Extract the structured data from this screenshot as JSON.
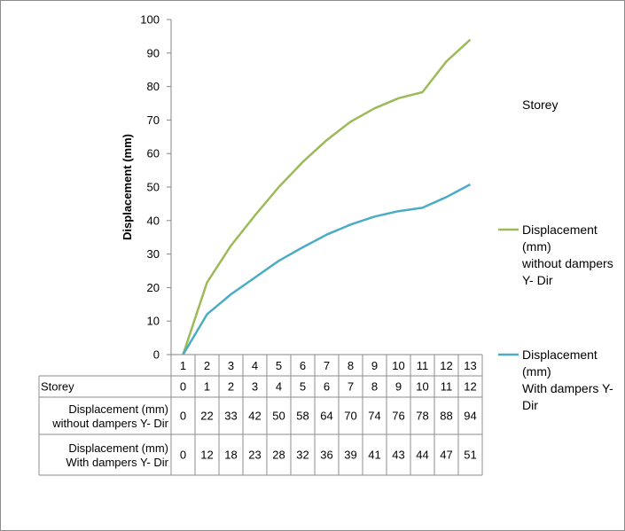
{
  "chart_data": {
    "type": "line",
    "title": "",
    "xlabel": "",
    "ylabel": "Displacement (mm)",
    "ylim": [
      0,
      100
    ],
    "y_ticks": [
      0,
      10,
      20,
      30,
      40,
      50,
      60,
      70,
      80,
      90,
      100
    ],
    "categories": [
      "1",
      "2",
      "3",
      "4",
      "5",
      "6",
      "7",
      "8",
      "9",
      "10",
      "11",
      "12",
      "13"
    ],
    "series": [
      {
        "name": "Storey",
        "label_lines": [
          "Storey"
        ],
        "row_label_lines": [
          "Storey"
        ],
        "color": "",
        "values": [
          0,
          1,
          2,
          3,
          4,
          5,
          6,
          7,
          8,
          9,
          10,
          11,
          12
        ],
        "table_values": [
          "0",
          "1",
          "2",
          "3",
          "4",
          "5",
          "6",
          "7",
          "8",
          "9",
          "10",
          "11",
          "12"
        ],
        "plotted": false
      },
      {
        "name": "Displacement (mm) without dampers Y- Dir",
        "label_lines": [
          "Displacement",
          "(mm)",
          "without dampers",
          "Y- Dir"
        ],
        "row_label_lines": [
          "Displacement (mm)",
          "without dampers Y- Dir"
        ],
        "color": "#9bbb59",
        "values": [
          0,
          21.5,
          32.5,
          41.5,
          50,
          57.5,
          64,
          69.5,
          73.5,
          76.5,
          78.3,
          87.5,
          94
        ],
        "table_values": [
          "0",
          "22",
          "33",
          "42",
          "50",
          "58",
          "64",
          "70",
          "74",
          "76",
          "78",
          "88",
          "94"
        ],
        "plotted": true
      },
      {
        "name": "Displacement (mm) With dampers Y- Dir",
        "label_lines": [
          "Displacement",
          "(mm)",
          "With dampers Y-",
          "Dir"
        ],
        "row_label_lines": [
          "Displacement (mm)",
          "With dampers Y- Dir"
        ],
        "color": "#4bacc6",
        "values": [
          0,
          12,
          18,
          23,
          28,
          32,
          35.8,
          38.8,
          41.2,
          42.8,
          43.8,
          47,
          50.8
        ],
        "table_values": [
          "0",
          "12",
          "18",
          "23",
          "28",
          "32",
          "36",
          "39",
          "41",
          "43",
          "44",
          "47",
          "51"
        ],
        "plotted": true
      }
    ],
    "grid": false,
    "legend_placement": "right",
    "data_table": true
  }
}
